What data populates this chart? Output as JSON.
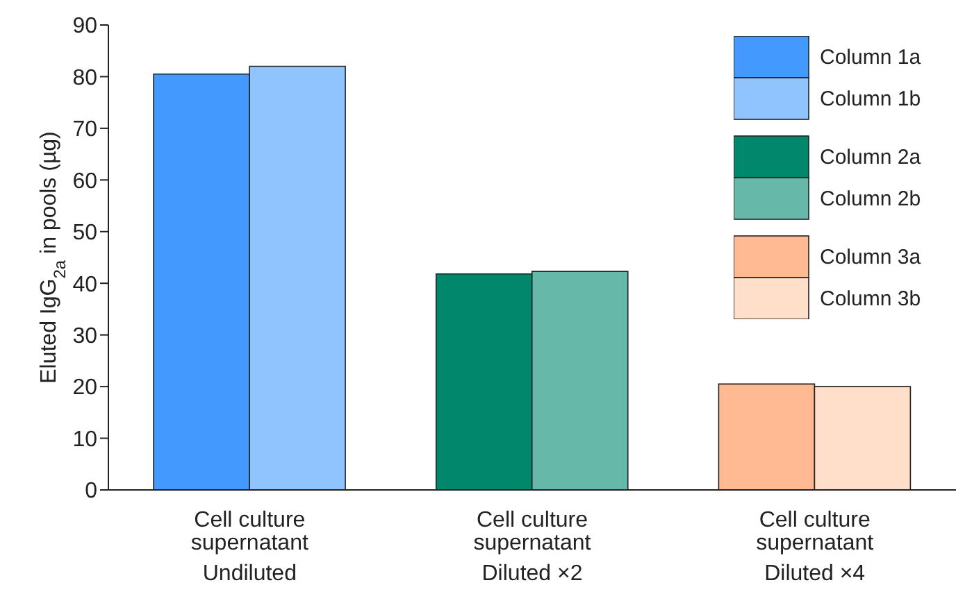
{
  "chart_data": {
    "type": "bar",
    "ylabel": "Eluted IgG$_{2a}$ in pools (µg)",
    "categories": [
      "Cell culture\nsupernatant\nUndiluted",
      "Cell culture\nsupernatant\nDiluted ×2",
      "Cell culture\nsupernatant\nDiluted ×4"
    ],
    "series": [
      {
        "name": "Column 1a",
        "color": "#4499ff",
        "values": [
          80.5,
          null,
          null
        ]
      },
      {
        "name": "Column 1b",
        "color": "#90c4ff",
        "values": [
          82,
          null,
          null
        ]
      },
      {
        "name": "Column 2a",
        "color": "#00876c",
        "values": [
          null,
          41.8,
          null
        ]
      },
      {
        "name": "Column 2b",
        "color": "#66b8a8",
        "values": [
          null,
          42.3,
          null
        ]
      },
      {
        "name": "Column 3a",
        "color": "#ffba94",
        "values": [
          null,
          null,
          20.5
        ]
      },
      {
        "name": "Column 3b",
        "color": "#ffdfc9",
        "values": [
          null,
          null,
          20
        ]
      }
    ],
    "ylim": [
      0,
      90
    ],
    "yticks": [
      0,
      10,
      20,
      30,
      40,
      50,
      60,
      70,
      80,
      90
    ],
    "grid": false,
    "legend": "top right"
  }
}
